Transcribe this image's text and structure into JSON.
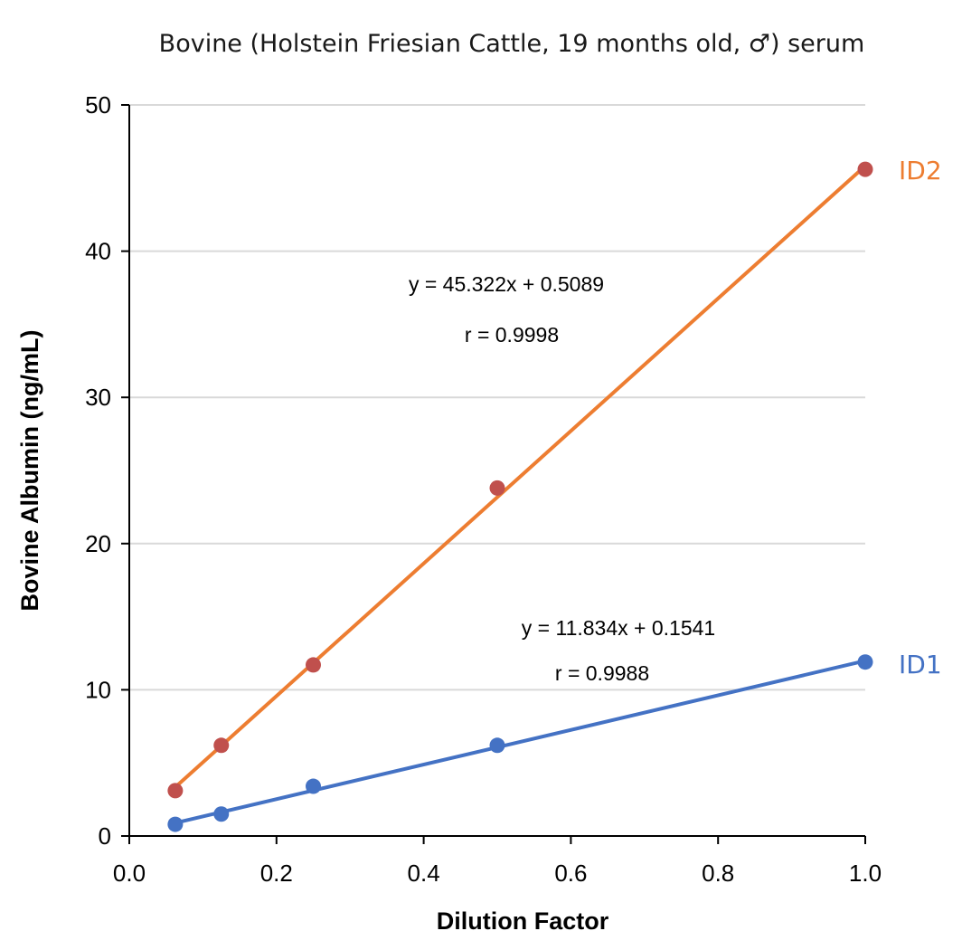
{
  "chart_data": {
    "type": "scatter",
    "title": "Bovine (Holstein Friesian Cattle, 19 months old, ♂)  serum",
    "xlabel": "Dilution Factor",
    "ylabel": "Bovine Albumin (ng/mL)",
    "xlim": [
      0,
      1.0
    ],
    "ylim": [
      0,
      50
    ],
    "x_ticks": [
      "0.0",
      "0.2",
      "0.4",
      "0.6",
      "0.8",
      "1.0"
    ],
    "y_ticks": [
      "0",
      "10",
      "20",
      "30",
      "40",
      "50"
    ],
    "grid": "horizontal",
    "series": [
      {
        "name": "ID2",
        "marker_color": "#c0504d",
        "line_color": "#ed7d31",
        "x": [
          0.0625,
          0.125,
          0.25,
          0.5,
          1.0
        ],
        "y": [
          3.1,
          6.2,
          11.7,
          23.8,
          45.6
        ],
        "fit": {
          "slope": 45.322,
          "intercept": 0.5089
        },
        "equation": "y = 45.322x + 0.5089",
        "r": "r = 0.9998"
      },
      {
        "name": "ID1",
        "marker_color": "#4472c4",
        "line_color": "#4472c4",
        "x": [
          0.0625,
          0.125,
          0.25,
          0.5,
          1.0
        ],
        "y": [
          0.8,
          1.5,
          3.4,
          6.2,
          11.9
        ],
        "fit": {
          "slope": 11.834,
          "intercept": 0.1541
        },
        "equation": "y = 11.834x + 0.1541",
        "r": "r = 0.9988"
      }
    ]
  }
}
